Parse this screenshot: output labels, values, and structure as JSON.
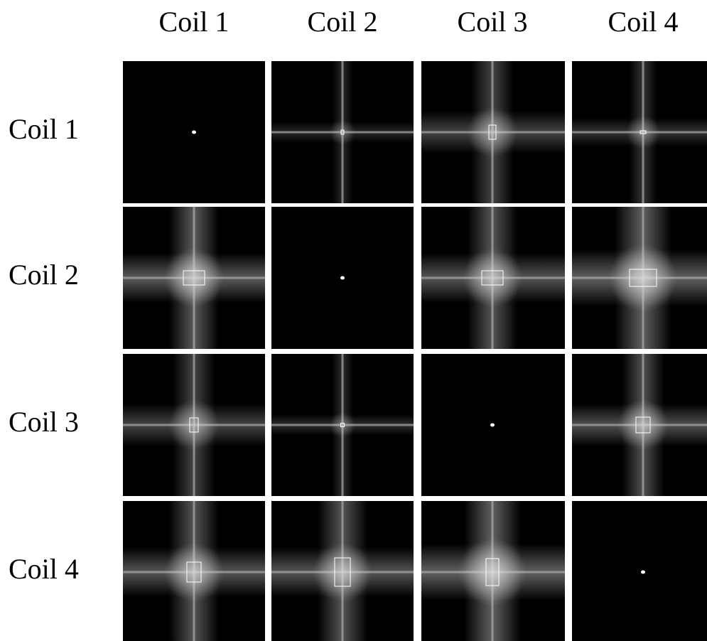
{
  "columns": [
    "Coil 1",
    "Coil 2",
    "Coil 3",
    "Coil 4"
  ],
  "rows": [
    "Coil 1",
    "Coil 2",
    "Coil 3",
    "Coil 4"
  ]
}
